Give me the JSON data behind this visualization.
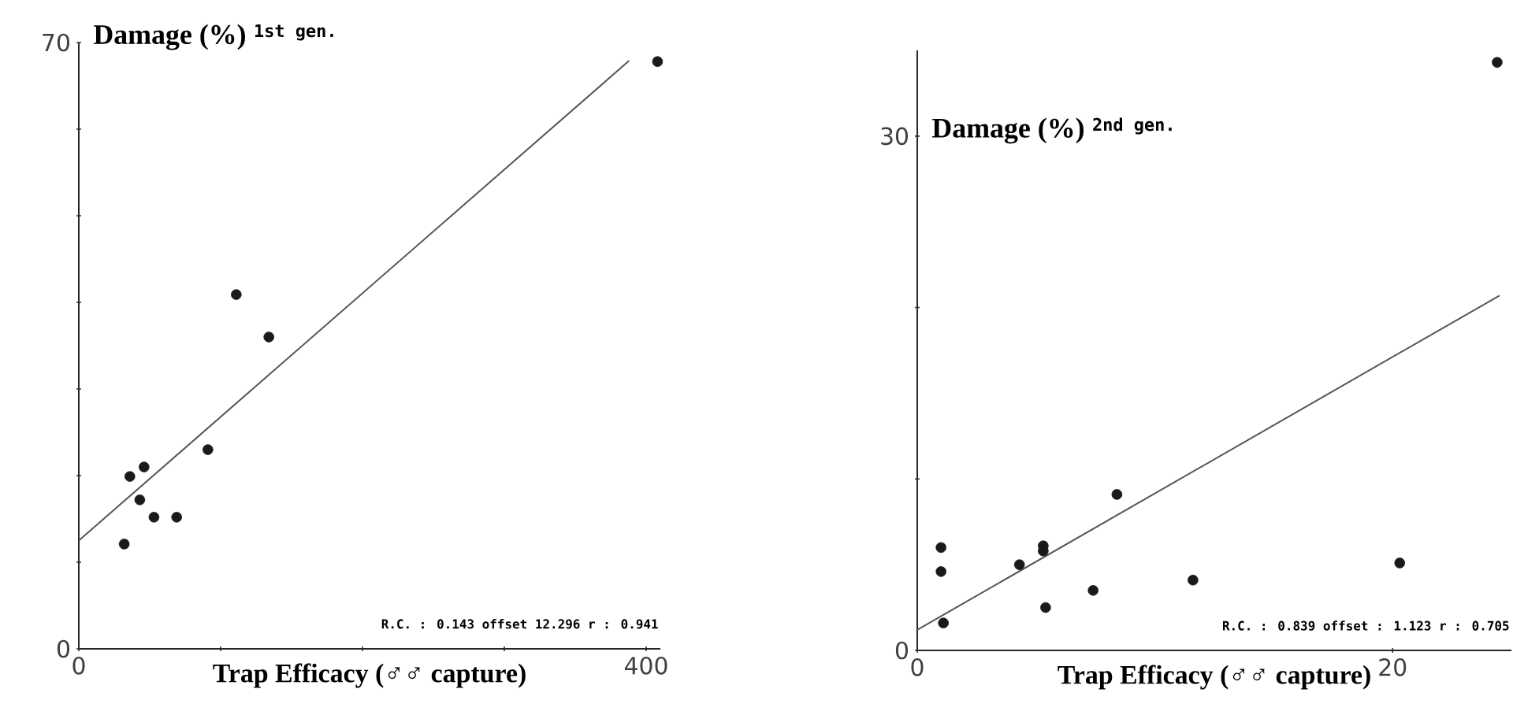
{
  "chart_data": [
    {
      "type": "scatter",
      "ylabel": "Damage (%)",
      "title": "1st gen.",
      "xlabel": "Trap Efficacy (♂♂ capture)",
      "annotations": [
        "R.C. : 0.143 offset 12.296 r : 0.941"
      ],
      "xlim": [
        0,
        410
      ],
      "ylim": [
        0,
        70
      ],
      "xticks": [
        0,
        {
          "value": 100,
          "label": null
        },
        {
          "value": 200,
          "label": null
        },
        {
          "value": 300,
          "label": null
        },
        400
      ],
      "yticks": [
        0,
        {
          "value": 10,
          "label": null
        },
        {
          "value": 20,
          "label": null
        },
        {
          "value": 30,
          "label": null
        },
        {
          "value": 40,
          "label": null
        },
        {
          "value": 50,
          "label": null
        },
        {
          "value": 60,
          "label": null
        },
        70
      ],
      "series": [
        {
          "marker": "circle",
          "color": "#1a1a1a",
          "x": [
            32,
            36,
            46,
            43,
            53,
            69,
            91,
            111,
            134,
            408
          ],
          "values": [
            12.1,
            19.9,
            21,
            17.2,
            15.2,
            15.2,
            23,
            40.9,
            36,
            67.8
          ]
        },
        {
          "type": "line",
          "marker": "none",
          "color": "#555555",
          "x": [
            0,
            388
          ],
          "values": [
            12.5,
            67.9
          ]
        }
      ]
    },
    {
      "type": "scatter",
      "ylabel": "Damage (%)",
      "title": "2nd gen.",
      "xlabel": "Trap Efficacy (♂♂ capture)",
      "annotations": [
        "R.C. : 0.839 offset : 1.123 r : 0.705"
      ],
      "xlim": [
        0,
        25
      ],
      "ylim": [
        0,
        35
      ],
      "xticks": [
        0,
        20
      ],
      "yticks": [
        0,
        {
          "value": 10,
          "label": null
        },
        {
          "value": 20,
          "label": null
        },
        30
      ],
      "series": [
        {
          "marker": "circle",
          "color": "#1a1a1a",
          "x": [
            1.0,
            1.0,
            1.1,
            4.3,
            5.3,
            5.3,
            5.4,
            7.4,
            8.4,
            11.6,
            20.3,
            24.4
          ],
          "values": [
            6.0,
            4.6,
            1.6,
            5.0,
            6.1,
            5.8,
            2.5,
            3.5,
            9.1,
            4.1,
            5.1,
            34.3
          ]
        },
        {
          "type": "line",
          "marker": "none",
          "color": "#555555",
          "x": [
            0,
            24.5
          ],
          "values": [
            1.2,
            20.7
          ]
        }
      ]
    }
  ]
}
